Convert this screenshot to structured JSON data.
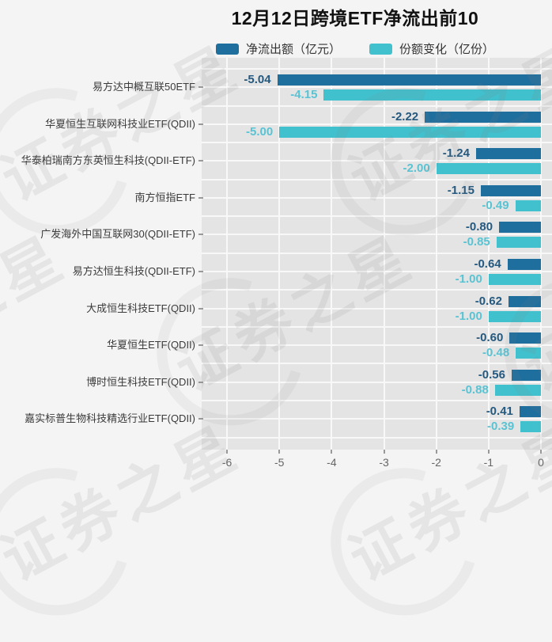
{
  "title": "12月12日跨境ETF净流出前10",
  "legend": {
    "items": [
      {
        "label": "净流出额（亿元）",
        "color": "#1e6e9e"
      },
      {
        "label": "份额变化（亿份）",
        "color": "#41c0cd"
      }
    ]
  },
  "watermark": {
    "text": "证券之星"
  },
  "chart_data": {
    "type": "bar",
    "orientation": "horizontal",
    "title": "12月12日跨境ETF净流出前10",
    "xlabel": "",
    "ylabel": "",
    "xlim": [
      -6.5,
      0.2
    ],
    "grid": true,
    "legend_position": "top",
    "categories": [
      "易方达中概互联50ETF",
      "华夏恒生互联网科技业ETF(QDII)",
      "华泰柏瑞南方东英恒生科技(QDII-ETF)",
      "南方恒指ETF",
      "广发海外中国互联网30(QDII-ETF)",
      "易方达恒生科技(QDII-ETF)",
      "大成恒生科技ETF(QDII)",
      "华夏恒生ETF(QDII)",
      "博时恒生科技ETF(QDII)",
      "嘉实标普生物科技精选行业ETF(QDII)"
    ],
    "series": [
      {
        "key": "net-outflow",
        "name": "净流出额（亿元）",
        "color": "#1e6e9e",
        "label_color": "#25597f",
        "values": [
          -5.04,
          -2.22,
          -1.24,
          -1.15,
          -0.8,
          -0.64,
          -0.62,
          -0.6,
          -0.56,
          -0.41
        ]
      },
      {
        "key": "share-change",
        "name": "份额变化（亿份）",
        "color": "#41c0cd",
        "label_color": "#59c3d3",
        "values": [
          -4.15,
          -5.0,
          -2.0,
          -0.49,
          -0.85,
          -1.0,
          -1.0,
          -0.48,
          -0.88,
          -0.39
        ]
      }
    ],
    "xticks": [
      -6,
      -5,
      -4,
      -3,
      -2,
      -1,
      0
    ]
  }
}
